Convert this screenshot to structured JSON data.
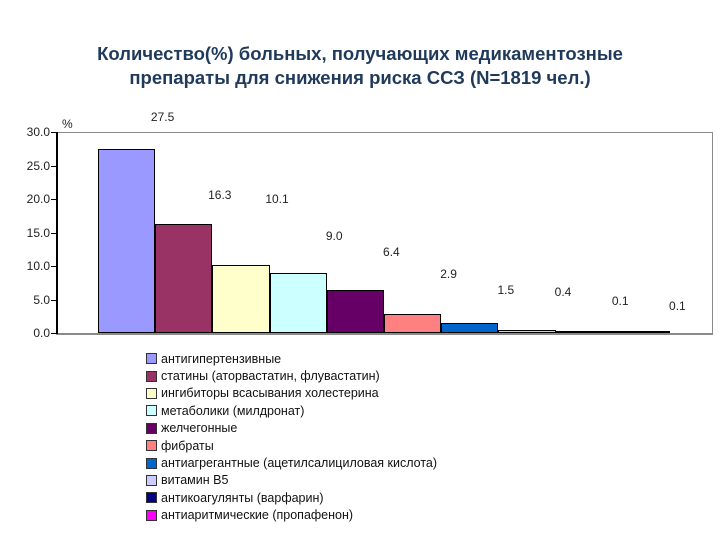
{
  "chart_data": {
    "type": "bar",
    "title": "Количество(%) больных, получающих медикаментозные препараты для снижения риска ССЗ (N=1819 чел.)",
    "title_lines": [
      "Количество(%) больных, получающих медикаментозные",
      "препараты для снижения риска ССЗ (N=1819 чел.)"
    ],
    "xlabel": "",
    "ylabel": "%",
    "ylim": [
      0,
      30
    ],
    "yticks": [
      "30.0",
      "25.0",
      "20.0",
      "15.0",
      "10.0",
      "5.0",
      "0.0"
    ],
    "grid": false,
    "legend_position": "bottom",
    "categories": [
      "антигипертензивные",
      "статины (аторвастатин, флувастатин)",
      "ингибиторы всасывания холестерина",
      "метаболики (милдронат)",
      "желчегонные",
      "фибраты",
      "антиагрегантные (ацетилсалициловая кислота)",
      "витамин В5",
      "антикоагулянты (варфарин)",
      "антиаритмические (пропафенон)"
    ],
    "values": [
      27.5,
      16.3,
      10.1,
      9.0,
      6.4,
      2.9,
      1.5,
      0.4,
      0.1,
      0.1
    ],
    "value_labels": [
      "27.5",
      "16.3",
      "10.1",
      "9.0",
      "6.4",
      "2.9",
      "1.5",
      "0.4",
      "0.1",
      "0.1"
    ],
    "colors": [
      "#9999ff",
      "#993366",
      "#ffffcc",
      "#ccffff",
      "#660066",
      "#ff8080",
      "#0066cc",
      "#ccccff",
      "#000080",
      "#ff00ff"
    ]
  }
}
